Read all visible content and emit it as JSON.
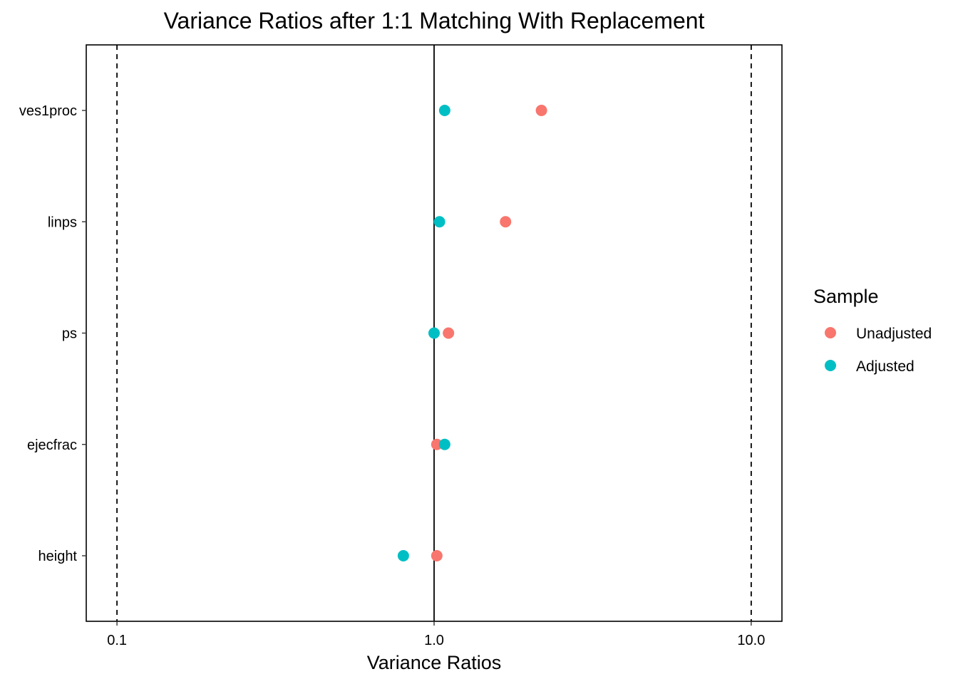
{
  "chart_data": {
    "type": "scatter",
    "title": "Variance Ratios after 1:1 Matching With Replacement",
    "xlabel": "Variance Ratios",
    "ylabel": "",
    "x_scale": "log10",
    "xlim": [
      0.08,
      12.5
    ],
    "x_ticks": [
      0.1,
      1.0,
      10.0
    ],
    "x_tick_labels": [
      "0.1",
      "1.0",
      "10.0"
    ],
    "reference_lines": {
      "solid": [
        1.0
      ],
      "dashed": [
        0.1,
        10.0
      ]
    },
    "categories": [
      "ves1proc",
      "linps",
      "ps",
      "ejecfrac",
      "height"
    ],
    "series": [
      {
        "name": "Unadjusted",
        "color": "#F8766D",
        "values": [
          2.18,
          1.68,
          1.11,
          1.02,
          1.02
        ]
      },
      {
        "name": "Adjusted",
        "color": "#00BFC4",
        "values": [
          1.08,
          1.04,
          1.0,
          1.08,
          0.8
        ]
      }
    ],
    "legend": {
      "title": "Sample",
      "position": "right"
    },
    "grid": false
  }
}
